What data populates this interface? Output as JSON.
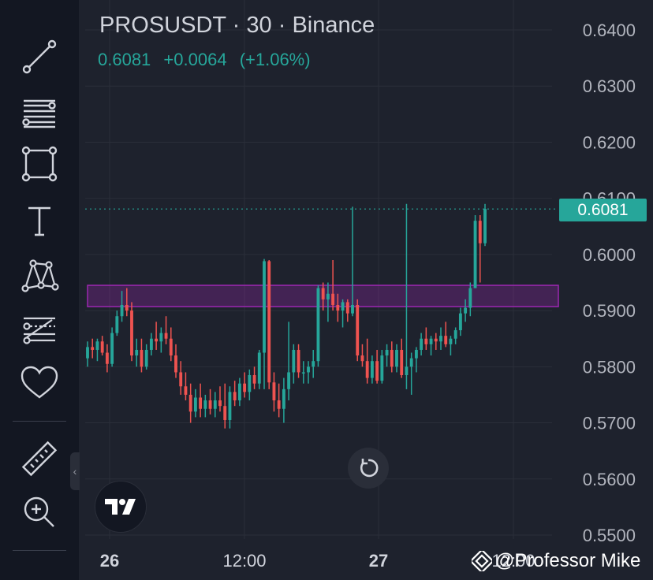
{
  "header": {
    "symbol": "PROSUSDT",
    "interval": "30",
    "exchange": "Binance",
    "last_price": "0.6081",
    "change": "+0.0064",
    "change_pct": "(+1.06%)"
  },
  "current_price_label": "0.6081",
  "watermark": "@Professor Mike",
  "colors": {
    "up": "#26a69a",
    "down": "#ef5350",
    "zone": "#9c27b0",
    "background": "#1e222d",
    "toolbar": "#131722"
  },
  "toolbar": {
    "tools": [
      "trend-line-icon",
      "fib-retracement-icon",
      "rectangle-icon",
      "text-icon",
      "pattern-icon",
      "projection-icon",
      "heart-icon",
      "ruler-icon",
      "zoom-in-icon"
    ]
  },
  "chart_data": {
    "type": "candlestick",
    "title": "PROSUSDT · 30 · Binance",
    "ylim": [
      0.55,
      0.64
    ],
    "y_ticks": [
      "0.6400",
      "0.6300",
      "0.6200",
      "0.6100",
      "0.6000",
      "0.5900",
      "0.5800",
      "0.5700",
      "0.5600",
      "0.5500"
    ],
    "x_ticks": [
      "26",
      "12:00",
      "27",
      "12:00"
    ],
    "grid": true,
    "last_price": 0.6081,
    "zone": {
      "low": 0.5907,
      "high": 0.5945
    },
    "candles": [
      [
        0.5815,
        0.5845,
        0.58,
        0.5835
      ],
      [
        0.5835,
        0.585,
        0.5815,
        0.583
      ],
      [
        0.583,
        0.585,
        0.581,
        0.5845
      ],
      [
        0.5845,
        0.5855,
        0.582,
        0.5825
      ],
      [
        0.5825,
        0.584,
        0.579,
        0.5805
      ],
      [
        0.5805,
        0.587,
        0.58,
        0.586
      ],
      [
        0.586,
        0.59,
        0.5855,
        0.589
      ],
      [
        0.589,
        0.5935,
        0.588,
        0.591
      ],
      [
        0.591,
        0.594,
        0.589,
        0.59
      ],
      [
        0.59,
        0.5915,
        0.581,
        0.582
      ],
      [
        0.582,
        0.585,
        0.58,
        0.583
      ],
      [
        0.583,
        0.585,
        0.579,
        0.58
      ],
      [
        0.58,
        0.584,
        0.5795,
        0.583
      ],
      [
        0.583,
        0.586,
        0.582,
        0.585
      ],
      [
        0.585,
        0.588,
        0.583,
        0.5845
      ],
      [
        0.5845,
        0.587,
        0.5825,
        0.586
      ],
      [
        0.586,
        0.589,
        0.584,
        0.585
      ],
      [
        0.585,
        0.587,
        0.581,
        0.582
      ],
      [
        0.582,
        0.584,
        0.578,
        0.579
      ],
      [
        0.579,
        0.581,
        0.575,
        0.5765
      ],
      [
        0.5765,
        0.579,
        0.574,
        0.575
      ],
      [
        0.575,
        0.577,
        0.57,
        0.572
      ],
      [
        0.572,
        0.576,
        0.571,
        0.5745
      ],
      [
        0.5745,
        0.577,
        0.571,
        0.5725
      ],
      [
        0.5725,
        0.575,
        0.571,
        0.574
      ],
      [
        0.574,
        0.576,
        0.5715,
        0.5725
      ],
      [
        0.5725,
        0.5755,
        0.571,
        0.574
      ],
      [
        0.574,
        0.5765,
        0.572,
        0.573
      ],
      [
        0.573,
        0.577,
        0.569,
        0.5705
      ],
      [
        0.5705,
        0.5765,
        0.569,
        0.5755
      ],
      [
        0.5755,
        0.5775,
        0.573,
        0.574
      ],
      [
        0.574,
        0.578,
        0.573,
        0.577
      ],
      [
        0.577,
        0.579,
        0.5745,
        0.5755
      ],
      [
        0.5755,
        0.5795,
        0.574,
        0.5785
      ],
      [
        0.5785,
        0.58,
        0.576,
        0.577
      ],
      [
        0.577,
        0.583,
        0.576,
        0.5825
      ],
      [
        0.5825,
        0.5992,
        0.576,
        0.5988
      ],
      [
        0.5988,
        0.599,
        0.576,
        0.5772
      ],
      [
        0.5772,
        0.579,
        0.572,
        0.574
      ],
      [
        0.574,
        0.577,
        0.571,
        0.5725
      ],
      [
        0.5725,
        0.578,
        0.57,
        0.576
      ],
      [
        0.576,
        0.588,
        0.574,
        0.579
      ],
      [
        0.579,
        0.584,
        0.577,
        0.583
      ],
      [
        0.583,
        0.584,
        0.578,
        0.579
      ],
      [
        0.579,
        0.581,
        0.577,
        0.579
      ],
      [
        0.579,
        0.581,
        0.577,
        0.58
      ],
      [
        0.58,
        0.583,
        0.578,
        0.581
      ],
      [
        0.581,
        0.5945,
        0.58,
        0.594
      ],
      [
        0.594,
        0.595,
        0.59,
        0.592
      ],
      [
        0.592,
        0.595,
        0.588,
        0.593
      ],
      [
        0.593,
        0.599,
        0.59,
        0.591
      ],
      [
        0.591,
        0.593,
        0.588,
        0.59
      ],
      [
        0.59,
        0.592,
        0.587,
        0.5915
      ],
      [
        0.5915,
        0.592,
        0.588,
        0.5895
      ],
      [
        0.5895,
        0.6085,
        0.589,
        0.591
      ],
      [
        0.591,
        0.592,
        0.581,
        0.582
      ],
      [
        0.582,
        0.584,
        0.58,
        0.581
      ],
      [
        0.581,
        0.585,
        0.577,
        0.578
      ],
      [
        0.578,
        0.582,
        0.577,
        0.581
      ],
      [
        0.581,
        0.583,
        0.577,
        0.5775
      ],
      [
        0.5775,
        0.583,
        0.577,
        0.582
      ],
      [
        0.582,
        0.584,
        0.58,
        0.583
      ],
      [
        0.583,
        0.5845,
        0.579,
        0.58
      ],
      [
        0.58,
        0.584,
        0.579,
        0.583
      ],
      [
        0.583,
        0.585,
        0.578,
        0.5785
      ],
      [
        0.5785,
        0.609,
        0.576,
        0.58
      ],
      [
        0.58,
        0.5825,
        0.575,
        0.5815
      ],
      [
        0.5815,
        0.5835,
        0.579,
        0.583
      ],
      [
        0.583,
        0.586,
        0.582,
        0.585
      ],
      [
        0.585,
        0.587,
        0.583,
        0.584
      ],
      [
        0.584,
        0.5855,
        0.582,
        0.585
      ],
      [
        0.585,
        0.586,
        0.583,
        0.5845
      ],
      [
        0.5845,
        0.587,
        0.583,
        0.5855
      ],
      [
        0.5855,
        0.588,
        0.5835,
        0.584
      ],
      [
        0.584,
        0.5855,
        0.582,
        0.585
      ],
      [
        0.585,
        0.587,
        0.584,
        0.5865
      ],
      [
        0.5865,
        0.5905,
        0.5855,
        0.5895
      ],
      [
        0.5895,
        0.592,
        0.588,
        0.5905
      ],
      [
        0.5905,
        0.595,
        0.589,
        0.594
      ],
      [
        0.594,
        0.607,
        0.594,
        0.606
      ],
      [
        0.606,
        0.607,
        0.595,
        0.602
      ],
      [
        0.602,
        0.609,
        0.6015,
        0.6081
      ]
    ]
  }
}
